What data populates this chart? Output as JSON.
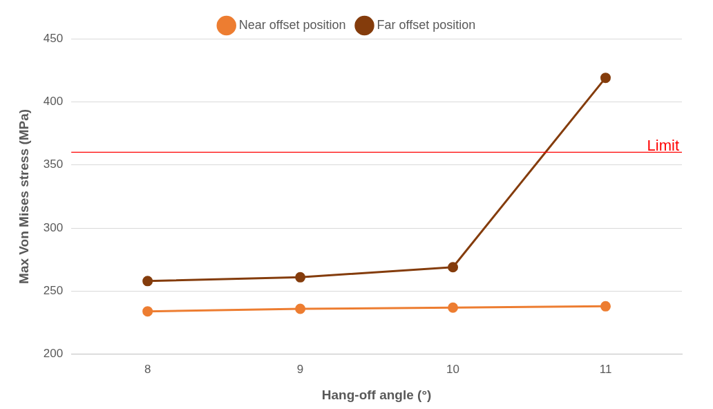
{
  "chart_data": {
    "type": "line",
    "xlabel": "Hang-off angle (°)",
    "ylabel": "Max Von Mises stress (MPa)",
    "categories": [
      "8",
      "9",
      "10",
      "11"
    ],
    "series": [
      {
        "name": "Near offset position",
        "color": "#ed7d31",
        "values": [
          234,
          236,
          237,
          238
        ]
      },
      {
        "name": "Far offset position",
        "color": "#843c0c",
        "values": [
          258,
          261,
          269,
          419
        ]
      }
    ],
    "ylim": [
      200,
      450
    ],
    "yticks": [
      200,
      250,
      300,
      350,
      400,
      450
    ],
    "ref_lines": [
      {
        "axis": "y",
        "value": 360,
        "label": "Limit",
        "color": "#ff0000"
      }
    ],
    "grid": "y",
    "legend": "top",
    "marker": "circle",
    "line_style": "solid"
  }
}
